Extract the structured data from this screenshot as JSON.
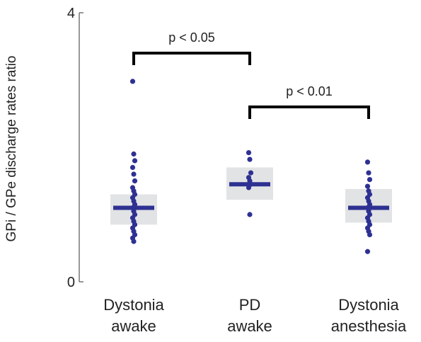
{
  "chart_data": {
    "type": "scatter",
    "title": "",
    "xlabel": "",
    "ylabel": "GPi / GPe discharge rates ratio",
    "ylim": [
      0,
      4
    ],
    "yticks": [
      "0",
      "4"
    ],
    "grid": false,
    "legend": "none",
    "groups": [
      {
        "label_lines": [
          "Dystonia",
          "awake"
        ],
        "mean": 1.1,
        "box": [
          0.85,
          1.3
        ],
        "points": [
          2.98,
          1.9,
          1.8,
          1.7,
          1.6,
          1.5,
          1.4,
          1.35,
          1.3,
          1.25,
          1.2,
          1.15,
          1.1,
          1.05,
          1.0,
          0.95,
          0.9,
          0.85,
          0.8,
          0.75,
          0.7,
          0.65,
          0.6
        ]
      },
      {
        "label_lines": [
          "PD",
          "awake"
        ],
        "mean": 1.45,
        "box": [
          1.22,
          1.7
        ],
        "points": [
          1.92,
          1.82,
          1.62,
          1.55,
          1.5,
          1.45,
          1.4,
          1.0
        ]
      },
      {
        "label_lines": [
          "Dystonia",
          "anesthesia"
        ],
        "mean": 1.1,
        "box": [
          0.88,
          1.38
        ],
        "points": [
          1.78,
          1.62,
          1.52,
          1.42,
          1.35,
          1.3,
          1.25,
          1.2,
          1.15,
          1.1,
          1.05,
          1.0,
          0.95,
          0.9,
          0.85,
          0.8,
          0.75,
          0.7,
          0.45
        ]
      }
    ],
    "comparisons": [
      {
        "from": 0,
        "to": 1,
        "label": "p < 0.05",
        "y": 3.4
      },
      {
        "from": 1,
        "to": 2,
        "label": "p < 0.01",
        "y": 2.6
      }
    ],
    "colors": {
      "points": "#2e3192",
      "mean_line": "#2e3192",
      "box": "#e2e3e5",
      "bracket": "#000000",
      "axis": "#555555"
    }
  }
}
